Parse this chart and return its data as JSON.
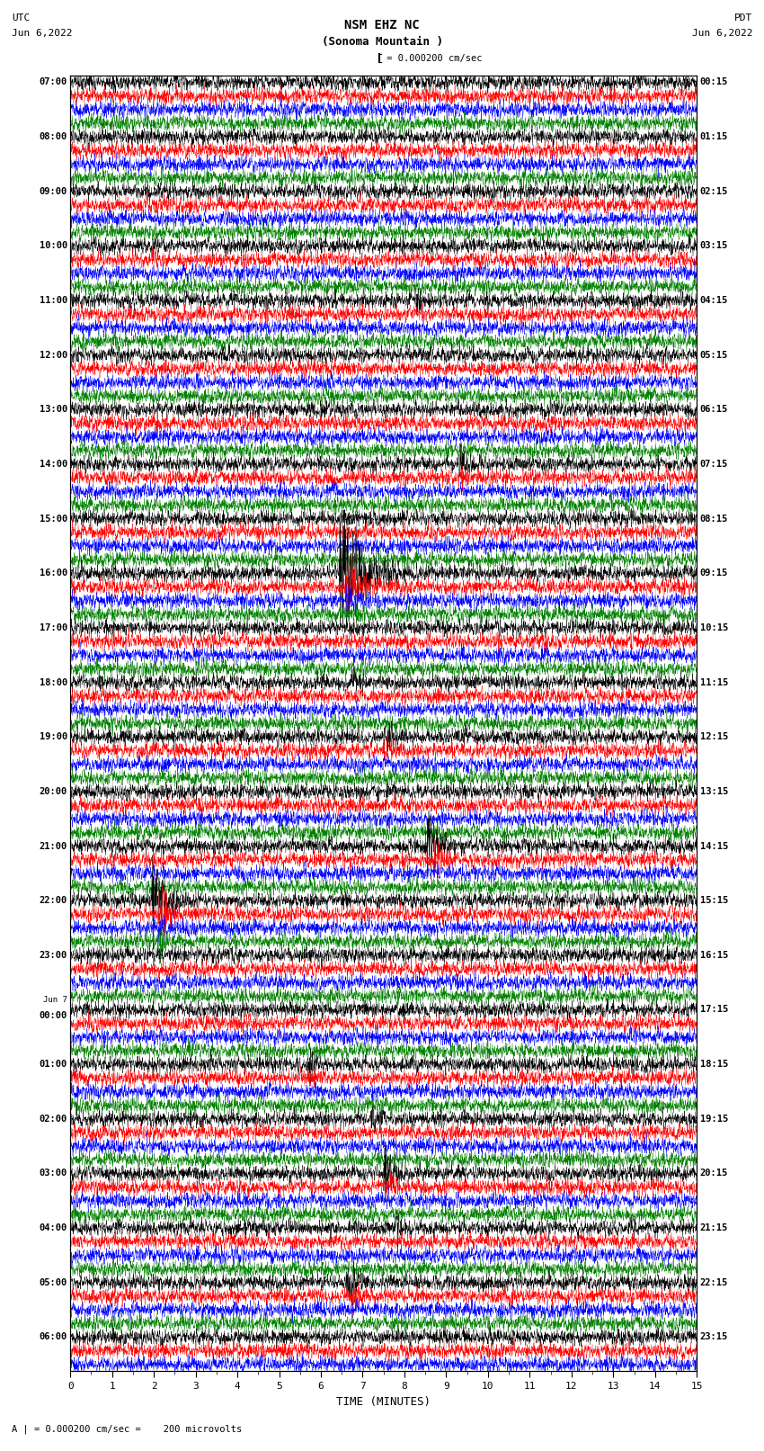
{
  "title_line1": "NSM EHZ NC",
  "title_line2": "(Sonoma Mountain )",
  "scale_label": "| = 0.000200 cm/sec",
  "bottom_label": "A | = 0.000200 cm/sec =    200 microvolts",
  "xlabel": "TIME (MINUTES)",
  "left_header_line1": "UTC",
  "left_header_line2": "Jun 6,2022",
  "right_header_line1": "PDT",
  "right_header_line2": "Jun 6,2022",
  "colors": [
    "black",
    "red",
    "blue",
    "green"
  ],
  "left_times": [
    "07:00",
    "08:00",
    "09:00",
    "10:00",
    "11:00",
    "12:00",
    "13:00",
    "14:00",
    "15:00",
    "16:00",
    "17:00",
    "18:00",
    "19:00",
    "20:00",
    "21:00",
    "22:00",
    "23:00",
    "Jun 7\n00:00",
    "01:00",
    "02:00",
    "03:00",
    "04:00",
    "05:00",
    "06:00"
  ],
  "right_times": [
    "00:15",
    "01:15",
    "02:15",
    "03:15",
    "04:15",
    "05:15",
    "06:15",
    "07:15",
    "08:15",
    "09:15",
    "10:15",
    "11:15",
    "12:15",
    "13:15",
    "14:15",
    "15:15",
    "16:15",
    "17:15",
    "18:15",
    "19:15",
    "20:15",
    "21:15",
    "22:15",
    "23:15"
  ],
  "n_rows": 95,
  "n_cols": 3000,
  "x_min": 0,
  "x_max": 15,
  "x_ticks": [
    0,
    1,
    2,
    3,
    4,
    5,
    6,
    7,
    8,
    9,
    10,
    11,
    12,
    13,
    14,
    15
  ],
  "background_color": "white",
  "figure_width": 8.5,
  "figure_height": 16.13,
  "dpi": 100,
  "seed": 42,
  "trace_amplitude": 0.42,
  "linewidth": 0.3,
  "grid_color": "#aaaaaa",
  "grid_linewidth": 0.4
}
